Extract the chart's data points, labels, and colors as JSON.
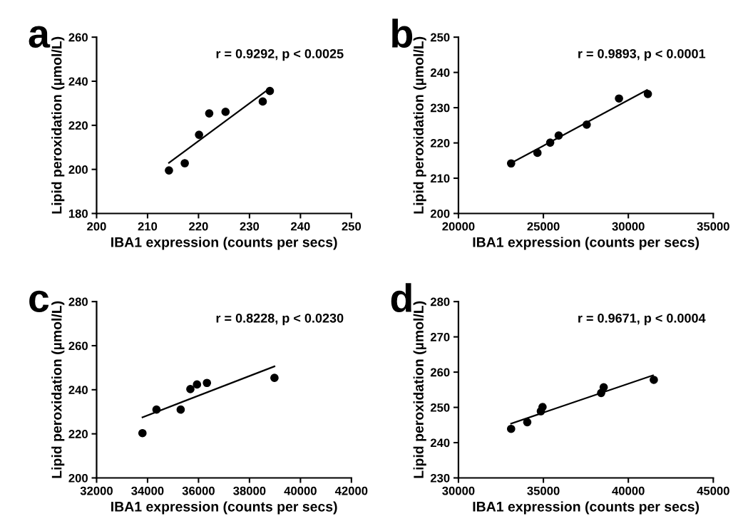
{
  "chart_data": [
    {
      "type": "scatter",
      "title": "a",
      "xlabel": "IBA1 expression (counts per secs)",
      "ylabel": "Lipid peroxidation (µmol/L)",
      "xlim": [
        200,
        250
      ],
      "xticks": [
        200,
        210,
        220,
        230,
        240,
        250
      ],
      "ylim": [
        180,
        260
      ],
      "yticks": [
        180,
        200,
        220,
        240,
        260
      ],
      "grid": false,
      "annotations": [
        "r = 0.9292, p < 0.0025"
      ],
      "series": [
        {
          "color": "#000000",
          "marker": "circle",
          "x": [
            214.2,
            217.3,
            220.1,
            222.1,
            225.3,
            232.6,
            234
          ],
          "values": [
            199.5,
            202.8,
            215.7,
            225.4,
            226.1,
            230.8,
            235.6
          ]
        },
        {
          "type": "line",
          "color": "#000000",
          "x": [
            214.2,
            234
          ],
          "values": [
            203,
            236.8
          ]
        }
      ]
    },
    {
      "type": "scatter",
      "title": "b",
      "xlabel": "IBA1 expression (counts per secs)",
      "ylabel": "Lipid peroxidation (µmol/L)",
      "xlim": [
        20000,
        35000
      ],
      "xticks": [
        20000,
        25000,
        30000,
        35000
      ],
      "ylim": [
        200,
        250
      ],
      "yticks": [
        200,
        210,
        220,
        230,
        240,
        250
      ],
      "grid": false,
      "annotations": [
        "r = 0.9893, p < 0.0001"
      ],
      "series": [
        {
          "color": "#000000",
          "marker": "circle",
          "x": [
            23100,
            24650,
            25400,
            25900,
            27550,
            29450,
            31150
          ],
          "values": [
            214.2,
            217.2,
            220.1,
            222.1,
            225.2,
            232.6,
            233.9
          ]
        },
        {
          "type": "line",
          "color": "#000000",
          "x": [
            23100,
            31100
          ],
          "values": [
            214.3,
            235
          ]
        }
      ]
    },
    {
      "type": "scatter",
      "title": "c",
      "xlabel": "IBA1 expression (counts per secs)",
      "ylabel": "Lipid peroxidation (µmol/L)",
      "xlim": [
        32000,
        42000
      ],
      "xticks": [
        32000,
        34000,
        36000,
        38000,
        40000,
        42000
      ],
      "ylim": [
        200,
        280
      ],
      "yticks": [
        200,
        220,
        240,
        260,
        280
      ],
      "grid": false,
      "annotations": [
        "r = 0.8228, p < 0.0230"
      ],
      "series": [
        {
          "color": "#000000",
          "marker": "circle",
          "x": [
            33800,
            34350,
            35300,
            35680,
            35940,
            36330,
            38980
          ],
          "values": [
            220.3,
            231,
            231,
            240.3,
            242.4,
            243.1,
            245.4
          ]
        },
        {
          "type": "line",
          "color": "#000000",
          "x": [
            33800,
            38980
          ],
          "values": [
            227.5,
            250.6
          ]
        }
      ]
    },
    {
      "type": "scatter",
      "title": "d",
      "xlabel": "IBA1 expression (counts per secs)",
      "ylabel": "Lipid peroxidation (µmol/L)",
      "xlim": [
        30000,
        45000
      ],
      "xticks": [
        30000,
        35000,
        40000,
        45000
      ],
      "ylim": [
        230,
        280
      ],
      "yticks": [
        230,
        240,
        250,
        260,
        270,
        280
      ],
      "grid": false,
      "annotations": [
        "r = 0.9671, p < 0.0004"
      ],
      "series": [
        {
          "color": "#000000",
          "marker": "circle",
          "x": [
            33100,
            34050,
            34850,
            34950,
            38400,
            38550,
            41500
          ],
          "values": [
            243.9,
            245.8,
            248.9,
            250.1,
            254.1,
            255.7,
            257.8
          ]
        },
        {
          "type": "line",
          "color": "#000000",
          "x": [
            33100,
            41450
          ],
          "values": [
            245.4,
            259.1
          ]
        }
      ]
    }
  ]
}
